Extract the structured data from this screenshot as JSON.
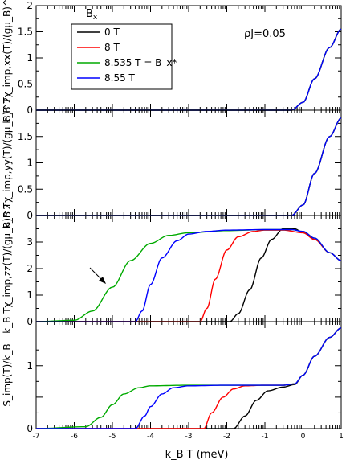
{
  "chart_data": {
    "type": "line",
    "x_scale": "log",
    "xlim": [
      1e-07,
      10
    ],
    "xlabel": "k_B T (meV)",
    "x_tick_labels": [
      "10^-7",
      "10^-6",
      "10^-5",
      "10^-4",
      "10^-3",
      "10^-2",
      "10^-1",
      "10^0",
      "10^1"
    ],
    "annotation": "ρJ=0.05",
    "legend": {
      "title": "B_x",
      "placement": "top-left",
      "entries": [
        "0 T",
        "8 T",
        "8.535 T = B_x*",
        "8.55 T"
      ]
    },
    "colors": {
      "0 T": "#000000",
      "8 T": "#ff0000",
      "8.535 T = B_x*": "#00aa00",
      "8.55 T": "#0000ff"
    },
    "panels": [
      {
        "id": "chi_xx",
        "ylabel": "k_B Tχ_imp,xx(T)/(gμ_B)^2",
        "ylim": [
          0,
          2
        ],
        "y_ticks": [
          0,
          0.5,
          1,
          1.5,
          2
        ],
        "y_tick_labels": [
          "0",
          "0.5",
          "1",
          "1.5",
          "2"
        ],
        "series": [
          {
            "name": "0 T",
            "x": [
              1e-07,
              0.5,
              1,
              2,
              5,
              10
            ],
            "y": [
              0,
              0,
              0.15,
              0.6,
              1.2,
              1.55
            ]
          },
          {
            "name": "8 T",
            "x": [
              1e-07,
              0.5,
              1,
              2,
              5,
              10
            ],
            "y": [
              0,
              0,
              0.15,
              0.6,
              1.2,
              1.55
            ]
          },
          {
            "name": "8.535 T = B_x*",
            "x": [
              1e-07,
              0.5,
              1,
              2,
              5,
              10
            ],
            "y": [
              0,
              0,
              0.15,
              0.6,
              1.2,
              1.55
            ]
          },
          {
            "name": "8.55 T",
            "x": [
              1e-07,
              0.5,
              1,
              2,
              5,
              10
            ],
            "y": [
              0,
              0,
              0.15,
              0.6,
              1.2,
              1.55
            ]
          }
        ]
      },
      {
        "id": "chi_yy",
        "ylabel": "k_B Tχ_imp,yy(T)/(gμ_B)^2",
        "ylim": [
          0,
          2
        ],
        "y_ticks": [
          0,
          0.5,
          1,
          1.5,
          2
        ],
        "y_tick_labels": [
          "0",
          "0.5",
          "1",
          "1.5",
          ""
        ],
        "series": [
          {
            "name": "0 T",
            "x": [
              1e-07,
              0.5,
              1,
              2,
              5,
              10
            ],
            "y": [
              0,
              0,
              0.2,
              0.8,
              1.5,
              1.85
            ]
          },
          {
            "name": "8 T",
            "x": [
              1e-07,
              0.5,
              1,
              2,
              5,
              10
            ],
            "y": [
              0,
              0,
              0.2,
              0.8,
              1.5,
              1.85
            ]
          },
          {
            "name": "8.535 T = B_x*",
            "x": [
              1e-07,
              0.5,
              1,
              2,
              5,
              10
            ],
            "y": [
              0,
              0,
              0.2,
              0.8,
              1.5,
              1.85
            ]
          },
          {
            "name": "8.55 T",
            "x": [
              1e-07,
              0.5,
              1,
              2,
              5,
              10
            ],
            "y": [
              0,
              0,
              0.2,
              0.8,
              1.5,
              1.85
            ]
          }
        ]
      },
      {
        "id": "chi_zz",
        "ylabel": "k_B Tχ_imp,zz(T)/(gμ_B)^2",
        "ylim": [
          0,
          4
        ],
        "y_ticks": [
          0,
          1,
          2,
          3
        ],
        "y_tick_labels": [
          "0",
          "1",
          "2",
          "3"
        ],
        "arrow_annotation": true,
        "series": [
          {
            "name": "0 T",
            "x": [
              1e-07,
              0.012,
              0.02,
              0.04,
              0.08,
              0.15,
              0.3,
              0.6,
              1,
              2,
              5,
              10
            ],
            "y": [
              0,
              0,
              0.3,
              1.2,
              2.4,
              3.1,
              3.5,
              3.5,
              3.35,
              3.1,
              2.6,
              2.3
            ]
          },
          {
            "name": "8 T",
            "x": [
              1e-07,
              0.002,
              0.003,
              0.005,
              0.01,
              0.02,
              0.05,
              0.1,
              0.3,
              1,
              2,
              5,
              10
            ],
            "y": [
              0,
              0,
              0.5,
              1.6,
              2.7,
              3.2,
              3.4,
              3.45,
              3.45,
              3.35,
              3.1,
              2.6,
              2.3
            ]
          },
          {
            "name": "8.535 T = B_x*",
            "x": [
              1e-07,
              1e-06,
              3e-06,
              1e-05,
              3e-05,
              0.0001,
              0.0003,
              0.001,
              0.01,
              0.1,
              0.5,
              1,
              2,
              5,
              10
            ],
            "y": [
              0,
              0.05,
              0.4,
              1.3,
              2.3,
              2.95,
              3.25,
              3.35,
              3.43,
              3.47,
              3.47,
              3.4,
              3.15,
              2.6,
              2.3
            ]
          },
          {
            "name": "8.55 T",
            "x": [
              1e-07,
              4e-05,
              6e-05,
              0.0001,
              0.0002,
              0.0005,
              0.001,
              0.003,
              0.01,
              0.1,
              0.5,
              1,
              2,
              5,
              10
            ],
            "y": [
              0,
              0,
              0.4,
              1.4,
              2.4,
              3.05,
              3.3,
              3.4,
              3.45,
              3.47,
              3.47,
              3.4,
              3.15,
              2.6,
              2.3
            ]
          }
        ]
      },
      {
        "id": "entropy",
        "ylabel": "S_imp(T)/k_B",
        "ylim": [
          0,
          1.7
        ],
        "y_ticks": [
          0,
          0.5,
          1
        ],
        "y_tick_labels": [
          "0",
          "",
          "1"
        ],
        "series": [
          {
            "name": "0 T",
            "x": [
              1e-07,
              0.015,
              0.03,
              0.06,
              0.12,
              0.3,
              0.6,
              1,
              2,
              5,
              10
            ],
            "y": [
              0,
              0,
              0.2,
              0.45,
              0.6,
              0.66,
              0.7,
              0.85,
              1.15,
              1.45,
              1.6
            ]
          },
          {
            "name": "8 T",
            "x": [
              1e-07,
              0.0025,
              0.004,
              0.008,
              0.015,
              0.03,
              0.1,
              0.3,
              0.6,
              1,
              2,
              5,
              10
            ],
            "y": [
              0,
              0,
              0.25,
              0.5,
              0.63,
              0.68,
              0.69,
              0.69,
              0.71,
              0.85,
              1.15,
              1.45,
              1.6
            ]
          },
          {
            "name": "8.535 T = B_x*",
            "x": [
              1e-07,
              2e-06,
              5e-06,
              1e-05,
              2e-05,
              5e-05,
              0.0001,
              0.001,
              0.01,
              0.1,
              0.3,
              0.6,
              1,
              2,
              5,
              10
            ],
            "y": [
              0,
              0.03,
              0.18,
              0.38,
              0.55,
              0.65,
              0.68,
              0.69,
              0.69,
              0.69,
              0.69,
              0.71,
              0.85,
              1.15,
              1.45,
              1.6
            ]
          },
          {
            "name": "8.55 T",
            "x": [
              1e-07,
              4e-05,
              7e-05,
              0.0001,
              0.0002,
              0.0004,
              0.001,
              0.01,
              0.1,
              0.3,
              0.6,
              1,
              2,
              5,
              10
            ],
            "y": [
              0,
              0,
              0.2,
              0.35,
              0.55,
              0.65,
              0.68,
              0.69,
              0.69,
              0.69,
              0.71,
              0.85,
              1.15,
              1.45,
              1.6
            ]
          }
        ]
      }
    ]
  }
}
